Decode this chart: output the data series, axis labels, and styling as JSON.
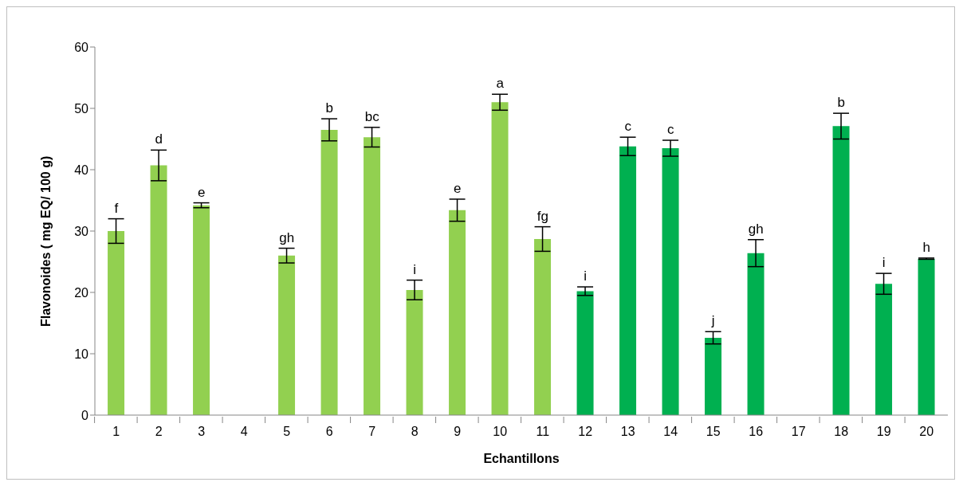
{
  "chart_data": {
    "type": "bar",
    "xlabel": "Echantillons",
    "ylabel": "Flavonoides ( mg EQ/ 100 g)",
    "categories": [
      "1",
      "2",
      "3",
      "4",
      "5",
      "6",
      "7",
      "8",
      "9",
      "10",
      "11",
      "12",
      "13",
      "14",
      "15",
      "16",
      "17",
      "18",
      "19",
      "20"
    ],
    "values": [
      30,
      40.7,
      34.2,
      null,
      26,
      46.5,
      45.3,
      20.4,
      33.4,
      51,
      28.7,
      20.2,
      43.8,
      43.5,
      12.6,
      26.4,
      null,
      47.1,
      21.4,
      25.5
    ],
    "errors": [
      2,
      2.5,
      0.4,
      null,
      1.2,
      1.8,
      1.6,
      1.6,
      1.8,
      1.3,
      2,
      0.7,
      1.5,
      1.3,
      1,
      2.2,
      null,
      2.1,
      1.7,
      0.1
    ],
    "colors": [
      "#92d050",
      "#92d050",
      "#92d050",
      "#92d050",
      "#92d050",
      "#92d050",
      "#92d050",
      "#92d050",
      "#92d050",
      "#92d050",
      "#92d050",
      "#00b050",
      "#00b050",
      "#00b050",
      "#00b050",
      "#00b050",
      "#00b050",
      "#00b050",
      "#00b050",
      "#00b050"
    ],
    "ylim": [
      0,
      60
    ],
    "yticks": [
      0,
      10,
      20,
      30,
      40,
      50,
      60
    ],
    "grid": false,
    "legend": false,
    "annotations": [
      {
        "text": "f",
        "x": "1",
        "y": 32
      },
      {
        "text": "d",
        "x": "2",
        "y": 43.2
      },
      {
        "text": "e",
        "x": "3",
        "y": 34.6
      },
      {
        "text": "gh",
        "x": "5",
        "y": 27.2
      },
      {
        "text": "b",
        "x": "6",
        "y": 48.3
      },
      {
        "text": "bc",
        "x": "7",
        "y": 46.9
      },
      {
        "text": "i",
        "x": "8",
        "y": 22
      },
      {
        "text": "e",
        "x": "9",
        "y": 35.2
      },
      {
        "text": "a",
        "x": "10",
        "y": 52.3
      },
      {
        "text": "fg",
        "x": "11",
        "y": 30.7
      },
      {
        "text": "i",
        "x": "12",
        "y": 20.9
      },
      {
        "text": "c",
        "x": "13",
        "y": 45.3
      },
      {
        "text": "c",
        "x": "14",
        "y": 44.8
      },
      {
        "text": "j",
        "x": "15",
        "y": 13.6
      },
      {
        "text": "gh",
        "x": "16",
        "y": 28.6
      },
      {
        "text": "b",
        "x": "18",
        "y": 49.2
      },
      {
        "text": "i",
        "x": "19",
        "y": 23.1
      },
      {
        "text": "h",
        "x": "20",
        "y": 25.6
      }
    ]
  }
}
